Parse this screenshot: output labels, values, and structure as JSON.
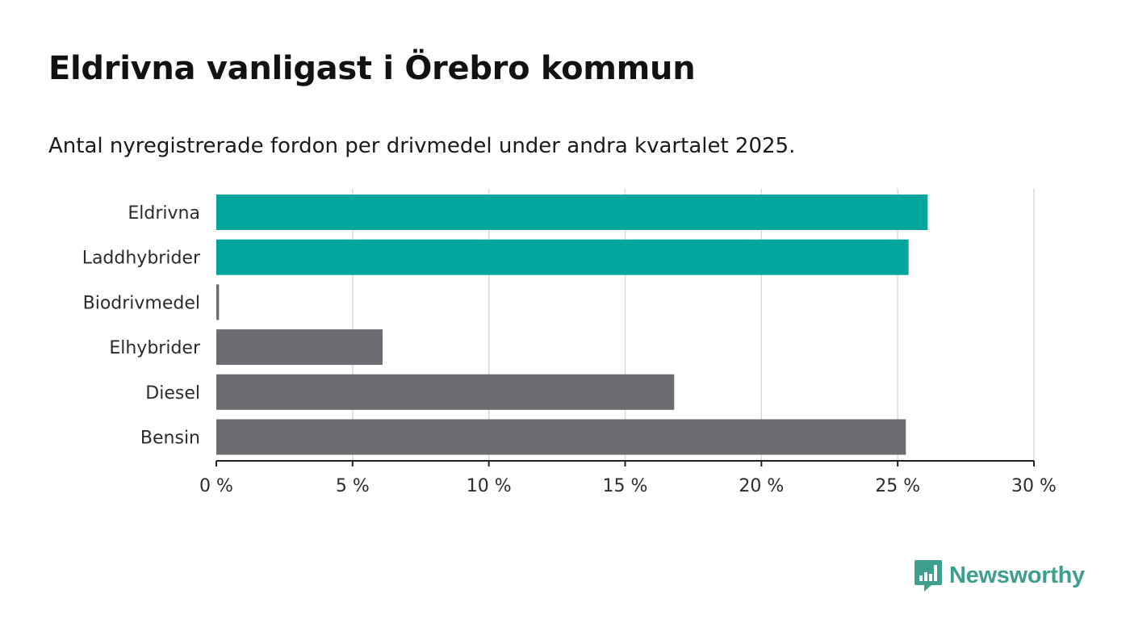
{
  "title": "Eldrivna vanligast i Örebro kommun",
  "subtitle": "Antal nyregistrerade fordon per drivmedel under andra kvartalet 2025.",
  "brand": {
    "name": "Newsworthy",
    "color": "#3f9f8f",
    "icon": "bar-chart-bubble-icon"
  },
  "colors": {
    "highlight": "#00a59b",
    "default": "#6e6c73",
    "grid": "#d9d9d9",
    "axis": "#222222"
  },
  "chart_data": {
    "type": "bar",
    "orientation": "horizontal",
    "categories": [
      "Eldrivna",
      "Laddhybrider",
      "Biodrivmedel",
      "Elhybrider",
      "Diesel",
      "Bensin"
    ],
    "values": [
      26.1,
      25.4,
      0.1,
      6.1,
      16.8,
      25.3
    ],
    "highlighted": [
      true,
      true,
      false,
      false,
      false,
      false
    ],
    "xlim": [
      0,
      30
    ],
    "xticks": [
      0,
      5,
      10,
      15,
      20,
      25,
      30
    ],
    "tick_labels": [
      "0 %",
      "5 %",
      "10 %",
      "15 %",
      "20 %",
      "25 %",
      "30 %"
    ],
    "grid": true
  }
}
